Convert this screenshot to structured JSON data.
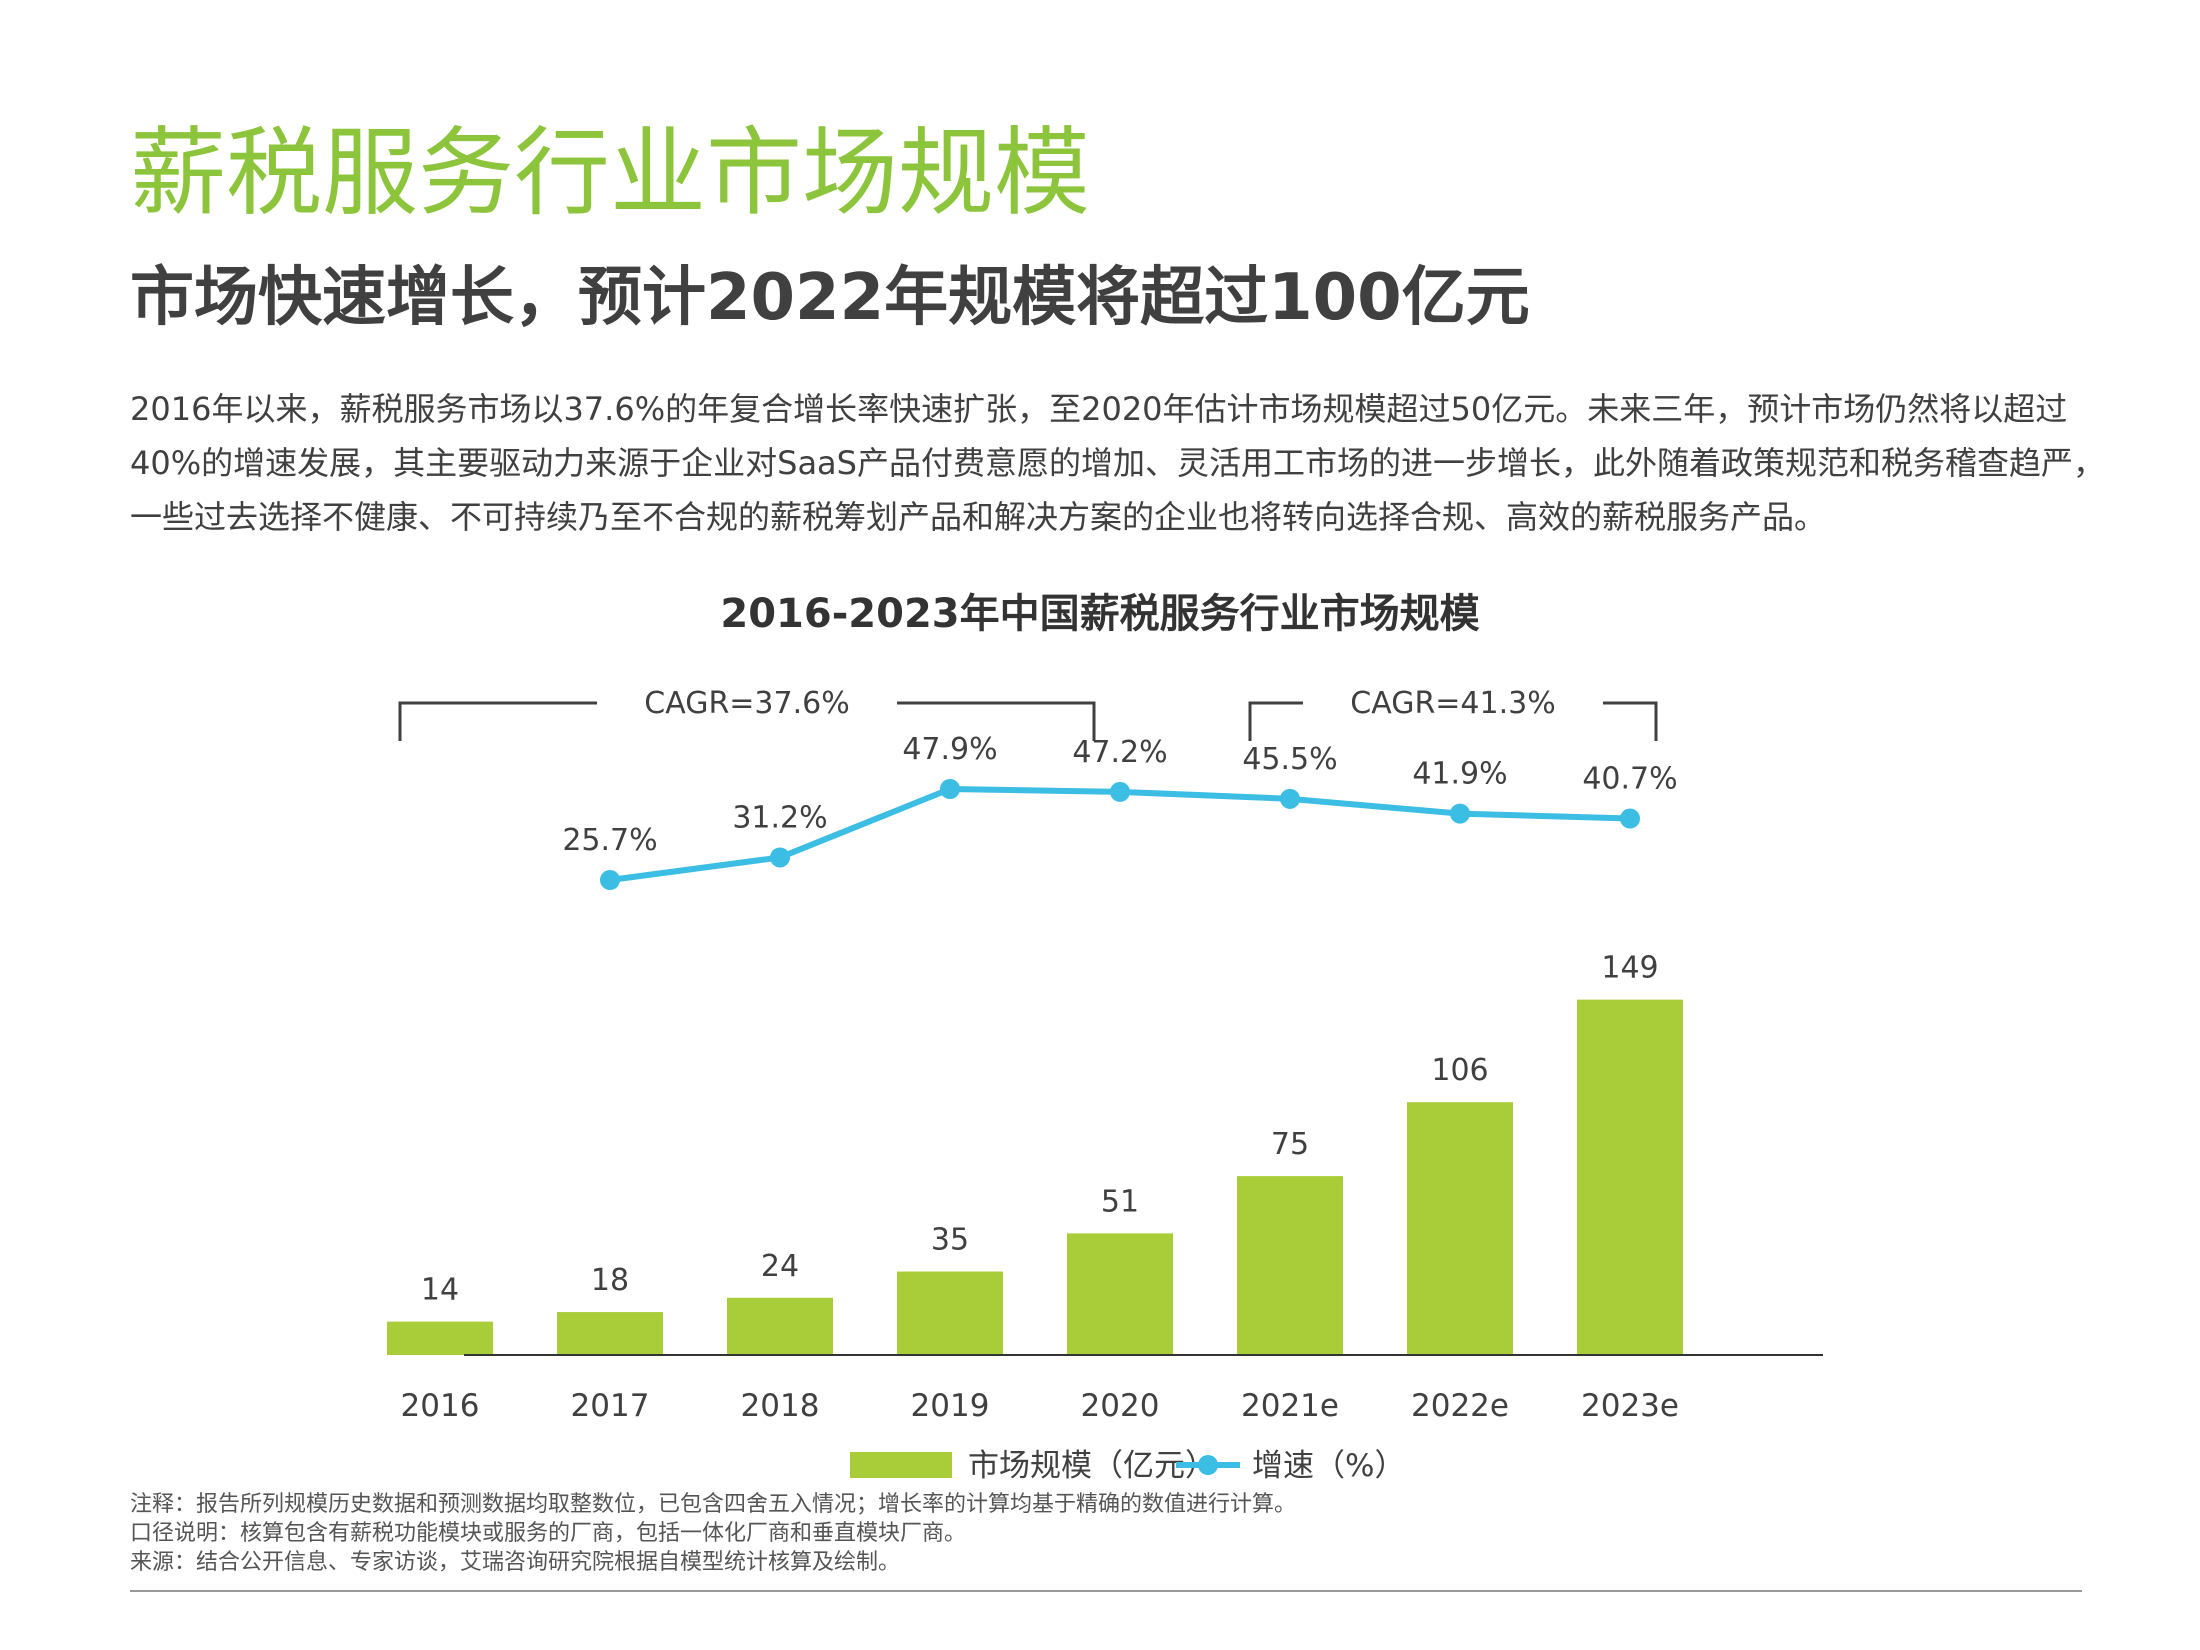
{
  "header": {
    "title": "薪税服务行业市场规模",
    "subtitle": "市场快速增长，预计2022年规模将超过100亿元",
    "intro": "2016年以来，薪税服务市场以37.6%的年复合增长率快速扩张，至2020年估计市场规模超过50亿元。未来三年，预计市场仍然将以超过40%的增速发展，其主要驱动力来源于企业对SaaS产品付费意愿的增加、灵活用工市场的进一步增长，此外随着政策规范和税务稽查趋严，一些过去选择不健康、不可持续乃至不合规的薪税筹划产品和解决方案的企业也将转向选择合规、高效的薪税服务产品。"
  },
  "chart_data": {
    "type": "bar",
    "title": "2016-2023年中国薪税服务行业市场规模",
    "categories": [
      "2016",
      "2017",
      "2018",
      "2019",
      "2020",
      "2021e",
      "2022e",
      "2023e"
    ],
    "series": [
      {
        "name": "市场规模（亿元）",
        "type": "bar",
        "values": [
          14,
          18,
          24,
          35,
          51,
          75,
          106,
          149
        ],
        "color": "#a9cd38"
      },
      {
        "name": "增速（%）",
        "type": "line",
        "values": [
          null,
          25.7,
          31.2,
          47.9,
          47.2,
          45.5,
          41.9,
          40.7
        ],
        "color": "#3bbde4"
      }
    ],
    "value_labels": [
      "14",
      "18",
      "24",
      "35",
      "51",
      "75",
      "106",
      "149"
    ],
    "rate_labels": [
      "",
      "25.7%",
      "31.2%",
      "47.9%",
      "47.2%",
      "45.5%",
      "41.9%",
      "40.7%"
    ],
    "cagr": [
      {
        "label": "CAGR=37.6%",
        "from": "2016",
        "to": "2020"
      },
      {
        "label": "CAGR=41.3%",
        "from": "2021e",
        "to": "2023e"
      }
    ],
    "legend_position": "bottom",
    "grid": false
  },
  "notes": [
    "注释：报告所列规模历史数据和预测数据均取整数位，已包含四舍五入情况；增长率的计算均基于精确的数值进行计算。",
    "口径说明：核算包含有薪税功能模块或服务的厂商，包括一体化厂商和垂直模块厂商。",
    "来源：结合公开信息、专家访谈，艾瑞咨询研究院根据自模型统计核算及绘制。"
  ]
}
